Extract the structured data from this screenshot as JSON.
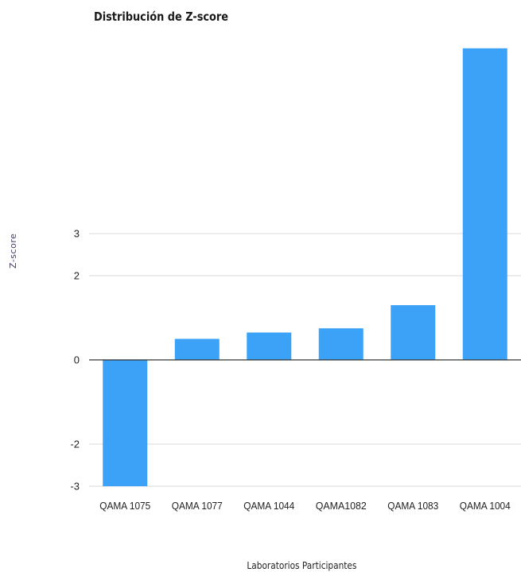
{
  "chart_data": {
    "type": "bar",
    "title": "Distribución de Z-score",
    "xlabel": "Laboratorios Participantes",
    "ylabel": "Z-score",
    "categories": [
      "QAMA 1075",
      "QAMA 1077",
      "QAMA 1044",
      "QAMA1082",
      "QAMA 1083",
      "QAMA 1004"
    ],
    "values": [
      -3.0,
      0.5,
      0.65,
      0.75,
      1.3,
      7.4
    ],
    "yticks": [
      {
        "value": 3,
        "label": "3"
      },
      {
        "value": 2,
        "label": "2"
      },
      {
        "value": 0,
        "label": "0"
      },
      {
        "value": -2,
        "label": "-2"
      },
      {
        "value": -3,
        "label": "-3"
      }
    ],
    "ylim": [
      -3,
      7.7
    ],
    "grid": true,
    "bar_color": "#3ba2f7",
    "grid_color": "#d9d9d9",
    "zero_line_color": "#333333"
  }
}
